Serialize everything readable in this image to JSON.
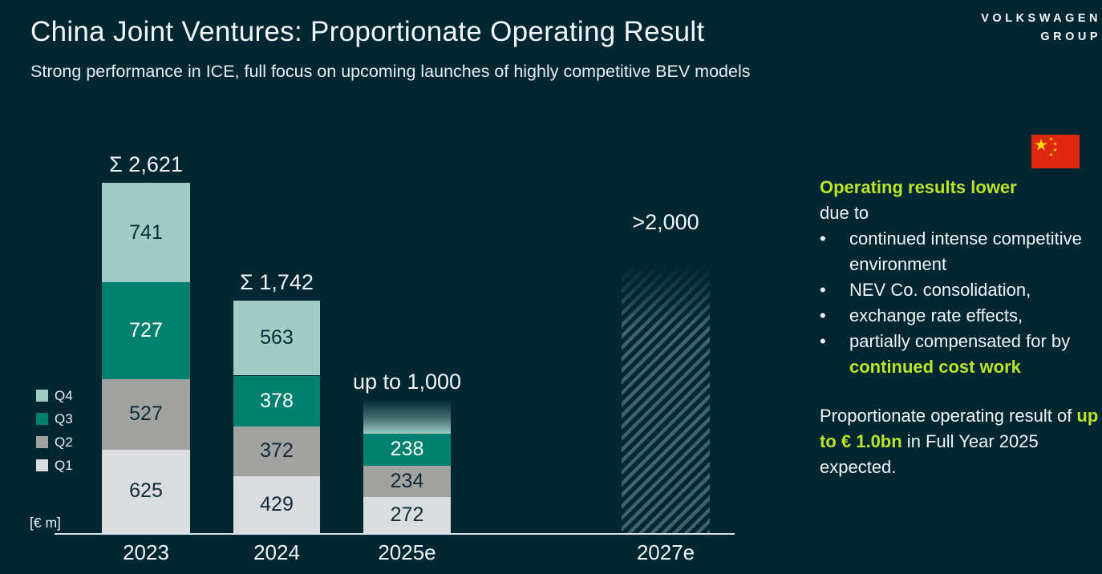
{
  "header": {
    "title": "China Joint Ventures: Proportionate Operating Result",
    "subtitle": "Strong performance in ICE, full focus on upcoming launches of highly competitive BEV models"
  },
  "logo": {
    "line1": "VOLKSWAGEN",
    "line2": "GROUP"
  },
  "flag": {
    "name": "china-flag",
    "red": "#de2910",
    "yellow": "#ffde00"
  },
  "colors": {
    "background": "#032633",
    "accent_green": "#bce428",
    "axis": "#d9e4e6",
    "dark_text": "#0c2b37",
    "light_text": "#ffffff"
  },
  "chart_data": {
    "type": "bar",
    "stacked": true,
    "unit_label": "[€ m]",
    "title": "China Joint Ventures: Proportionate Operating Result",
    "categories": [
      "2023",
      "2024",
      "2025e",
      "2027e"
    ],
    "series_order_bottom_to_top": [
      "Q1",
      "Q2",
      "Q3",
      "Q4"
    ],
    "legend": [
      {
        "label": "Q4",
        "color": "#a0ccc4"
      },
      {
        "label": "Q3",
        "color": "#00806f"
      },
      {
        "label": "Q2",
        "color": "#a2a2a0"
      },
      {
        "label": "Q1",
        "color": "#dbdcdf"
      }
    ],
    "bars": [
      {
        "category": "2023",
        "total": 2621,
        "total_label": "Σ 2,621",
        "segments": {
          "Q1": 625,
          "Q2": 527,
          "Q3": 727,
          "Q4": 741
        }
      },
      {
        "category": "2024",
        "total": 1742,
        "total_label": "Σ 1,742",
        "segments": {
          "Q1": 429,
          "Q2": 372,
          "Q3": 378,
          "Q4": 563
        }
      },
      {
        "category": "2025e",
        "total_label": "up to 1,000",
        "projected_total": 1000,
        "segments": {
          "Q1": 272,
          "Q2": 234,
          "Q3": 238
        },
        "cap": "gradient"
      },
      {
        "category": "2027e",
        "total_label": ">2,000",
        "projected_total": 2000,
        "style": "hatched"
      }
    ]
  },
  "notes": {
    "heading_highlight": "Operating results lower",
    "heading_rest": "due to",
    "bullets": [
      {
        "text": "continued intense competitive environment"
      },
      {
        "text": "NEV Co. consolidation,"
      },
      {
        "text": "exchange rate effects,"
      },
      {
        "text": "partially compensated for by ",
        "highlight": "continued cost work"
      }
    ],
    "footer": {
      "prefix": "Proportionate operating result of ",
      "highlight": "up to € 1.0bn",
      "suffix": " in Full Year 2025 expected."
    }
  }
}
